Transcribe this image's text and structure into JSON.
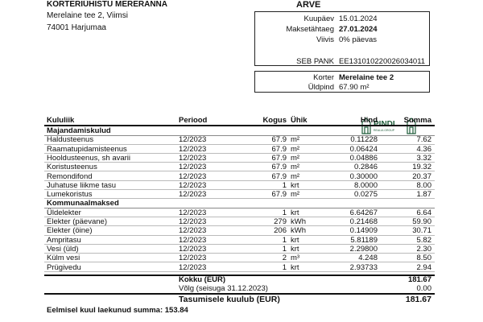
{
  "sender": {
    "name": "KORTERIÜHISTU MERERANNA",
    "address1": "Merelaine tee 2, Viimsi",
    "address2": "74001 Harjumaa"
  },
  "doc_title": "ARVE",
  "invoice": [
    {
      "label": "Kuupäev",
      "value": "15.01.2024",
      "bold": false
    },
    {
      "label": "Maksetähtaeg",
      "value": "27.01.2024",
      "bold": true
    },
    {
      "label": "Viivis",
      "value": "0% päevas",
      "bold": false
    },
    {
      "label": "SEB PANK",
      "value": "EE131010220026034011",
      "bold": false
    }
  ],
  "apartment": [
    {
      "label": "Korter",
      "value": "Merelaine tee 2"
    },
    {
      "label": "Üldpind",
      "value": "67.90 m²"
    }
  ],
  "logo": {
    "name": "PINDI",
    "sub": "REALIA GROUP",
    "color": "#1f5c3a"
  },
  "columns": [
    "Kululiik",
    "Periood",
    "Kogus",
    "Ühik",
    "Hind",
    "Summa"
  ],
  "sections": [
    {
      "title": "Majandamiskulud",
      "rows": [
        [
          "Haldusteenus",
          "12/2023",
          "67.9",
          "m²",
          "0.11228",
          "7.62"
        ],
        [
          "Raamatupidamisteenus",
          "12/2023",
          "67.9",
          "m²",
          "0.06424",
          "4.36"
        ],
        [
          "Hooldusteenus, sh avarii",
          "12/2023",
          "67.9",
          "m²",
          "0.04886",
          "3.32"
        ],
        [
          "Koristusteenus",
          "12/2023",
          "67.9",
          "m²",
          "0.2846",
          "19.32"
        ],
        [
          "Remondifond",
          "12/2023",
          "67.9",
          "m²",
          "0.30000",
          "20.37"
        ],
        [
          "Juhatuse liikme tasu",
          "12/2023",
          "1",
          "krt",
          "8.0000",
          "8.00"
        ],
        [
          "Lumekoristus",
          "12/2023",
          "67.9",
          "m²",
          "0.0275",
          "1.87"
        ]
      ]
    },
    {
      "title": "Kommunaalmaksed",
      "rows": [
        [
          "Üldelekter",
          "12/2023",
          "1",
          "krt",
          "6.64267",
          "6.64"
        ],
        [
          "Elekter (päevane)",
          "12/2023",
          "279",
          "kWh",
          "0.21468",
          "59.90"
        ],
        [
          "Elekter (öine)",
          "12/2023",
          "206",
          "kWh",
          "0.14909",
          "30.71"
        ],
        [
          "Ampritasu",
          "12/2023",
          "1",
          "krt",
          "5.81189",
          "5.82"
        ],
        [
          "Vesi (üld)",
          "12/2023",
          "1",
          "krt",
          "2.29800",
          "2.30"
        ],
        [
          "Külm vesi",
          "12/2023",
          "2",
          "m³",
          "4.248",
          "8.50"
        ],
        [
          "Prügivedu",
          "12/2023",
          "1",
          "krt",
          "2.93733",
          "2.94"
        ]
      ]
    }
  ],
  "totals": {
    "kokku_label": "Kokku (EUR)",
    "kokku": "181.67",
    "volg_label": "Võlg (seisuga 31.12.2023)",
    "volg": "0.00",
    "tasumisele_label": "Tasumisele kuulub (EUR)",
    "tasumisele": "181.67"
  },
  "previous_payment": "Eelmisel kuul laekunud summa: 153.84"
}
